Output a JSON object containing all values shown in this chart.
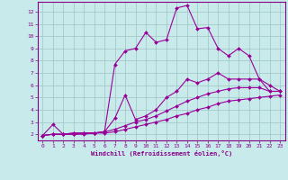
{
  "xlabel": "Windchill (Refroidissement éolien,°C)",
  "background_color": "#c8eaea",
  "grid_color": "#9cc4c4",
  "line_color": "#990099",
  "xlim": [
    -0.5,
    23.5
  ],
  "ylim": [
    1.5,
    12.8
  ],
  "xticks": [
    0,
    1,
    2,
    3,
    4,
    5,
    6,
    7,
    8,
    9,
    10,
    11,
    12,
    13,
    14,
    15,
    16,
    17,
    18,
    19,
    20,
    21,
    22,
    23
  ],
  "yticks": [
    2,
    3,
    4,
    5,
    6,
    7,
    8,
    9,
    10,
    11,
    12
  ],
  "series": [
    {
      "x": [
        0,
        1,
        2,
        3,
        4,
        5,
        6,
        7,
        8,
        9,
        10,
        11,
        12,
        13,
        14,
        15,
        16,
        17,
        18,
        19,
        20,
        21,
        22,
        23
      ],
      "y": [
        1.9,
        2.8,
        2.0,
        2.1,
        2.1,
        2.1,
        2.2,
        7.7,
        8.8,
        9.0,
        10.3,
        9.5,
        9.7,
        12.3,
        12.5,
        10.6,
        10.7,
        9.0,
        8.4,
        9.0,
        8.4,
        6.5,
        6.0,
        5.5
      ]
    },
    {
      "x": [
        0,
        1,
        2,
        3,
        4,
        5,
        6,
        7,
        8,
        9,
        10,
        11,
        12,
        13,
        14,
        15,
        16,
        17,
        18,
        19,
        20,
        21,
        22,
        23
      ],
      "y": [
        1.9,
        2.0,
        2.0,
        2.1,
        2.1,
        2.1,
        2.2,
        3.3,
        5.2,
        3.2,
        3.5,
        4.0,
        5.0,
        5.5,
        6.5,
        6.2,
        6.5,
        7.0,
        6.5,
        6.5,
        6.5,
        6.5,
        5.5,
        5.5
      ]
    },
    {
      "x": [
        0,
        1,
        2,
        3,
        4,
        5,
        6,
        7,
        8,
        9,
        10,
        11,
        12,
        13,
        14,
        15,
        16,
        17,
        18,
        19,
        20,
        21,
        22,
        23
      ],
      "y": [
        1.9,
        2.0,
        2.0,
        2.0,
        2.1,
        2.1,
        2.2,
        2.4,
        2.7,
        3.0,
        3.2,
        3.5,
        3.9,
        4.3,
        4.7,
        5.0,
        5.3,
        5.5,
        5.7,
        5.8,
        5.8,
        5.8,
        5.5,
        5.5
      ]
    },
    {
      "x": [
        0,
        1,
        2,
        3,
        4,
        5,
        6,
        7,
        8,
        9,
        10,
        11,
        12,
        13,
        14,
        15,
        16,
        17,
        18,
        19,
        20,
        21,
        22,
        23
      ],
      "y": [
        1.9,
        2.0,
        2.0,
        2.0,
        2.0,
        2.1,
        2.1,
        2.2,
        2.4,
        2.6,
        2.8,
        3.0,
        3.2,
        3.5,
        3.7,
        4.0,
        4.2,
        4.5,
        4.7,
        4.8,
        4.9,
        5.0,
        5.1,
        5.2
      ]
    }
  ]
}
